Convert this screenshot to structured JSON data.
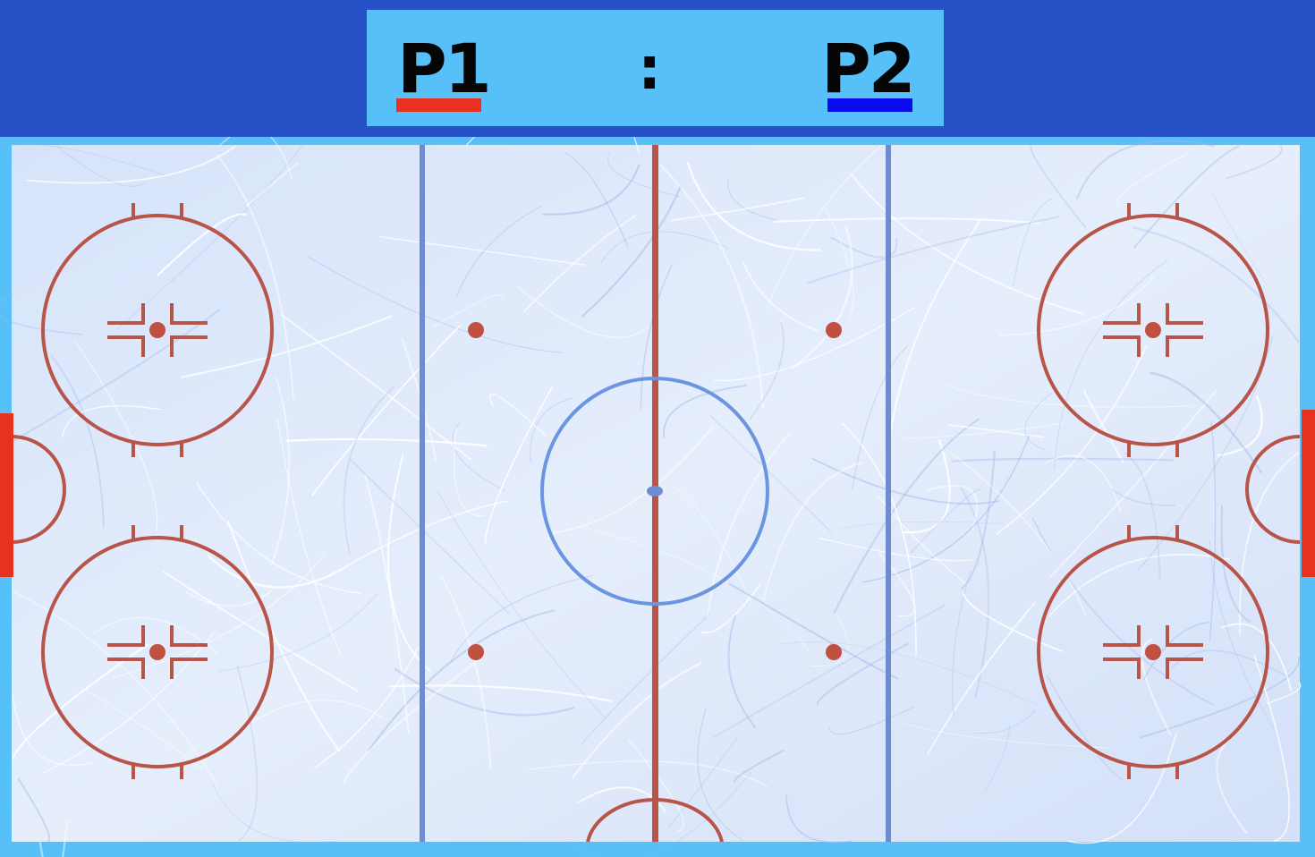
{
  "scoreboard": {
    "player1": {
      "label": "P1",
      "color": "#e8321f"
    },
    "separator": ":",
    "player2": {
      "label": "P2",
      "color": "#0a0aee"
    }
  },
  "colors": {
    "top_bar": "#2752c7",
    "scoreboard_bg": "#58c0f9",
    "rink_border": "#58c0f9",
    "ice": "#dde8fb",
    "red_lines": "#b95449",
    "blue_lines": "#6f8bd1",
    "center_circle": "#6a95e0",
    "goal_left": "#e8321f",
    "goal_right": "#e8321f"
  }
}
